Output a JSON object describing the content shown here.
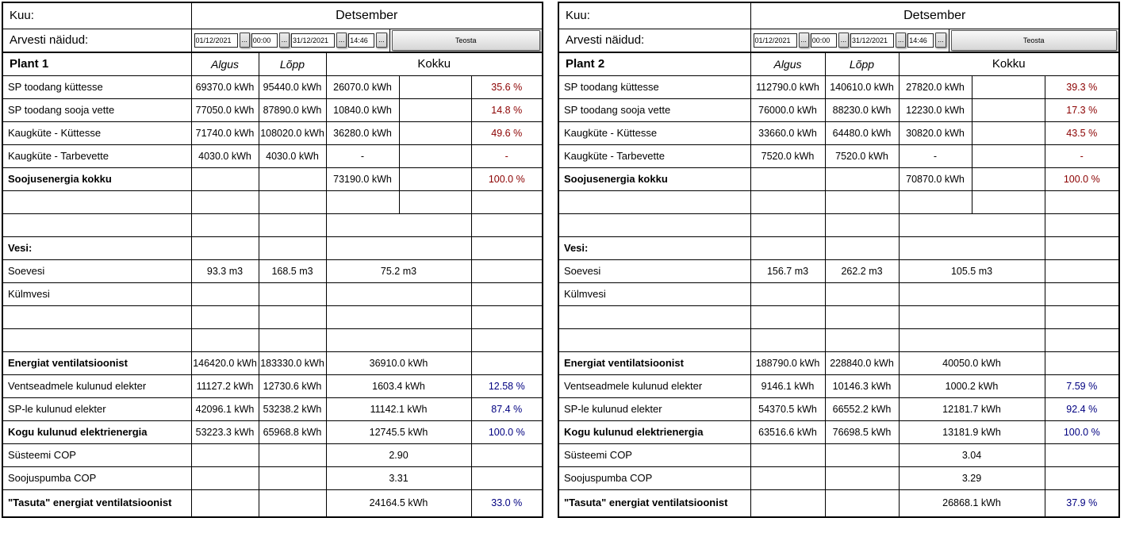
{
  "colors": {
    "pct_red": "#8b0000",
    "pct_blue": "#000080",
    "border": "#000000"
  },
  "tables": [
    {
      "header": {
        "kuu_label": "Kuu:",
        "month": "Detsember",
        "arvesti_label": "Arvesti näidud:",
        "date_from": "01/12/2021",
        "time_from": "00:00",
        "date_to": "31/12/2021",
        "time_to": "14:46",
        "browse_button": "...",
        "teosta_button": "Teosta",
        "plant_title": "Plant 1",
        "col_algus": "Algus",
        "col_lopp": "Lõpp",
        "col_kokku": "Kokku"
      },
      "rows": [
        {
          "label": "SP toodang küttesse",
          "bold": false,
          "merged": false,
          "algus": "69370.0 kWh",
          "lopp": "95440.0 kWh",
          "val": "26070.0 kWh",
          "mid": "",
          "pct": "35.6 %",
          "pct_color": "red"
        },
        {
          "label": "SP toodang sooja vette",
          "bold": false,
          "merged": false,
          "algus": "77050.0 kWh",
          "lopp": "87890.0 kWh",
          "val": "10840.0 kWh",
          "mid": "",
          "pct": "14.8 %",
          "pct_color": "red"
        },
        {
          "label": "Kaugküte - Küttesse",
          "bold": false,
          "merged": false,
          "algus": "71740.0 kWh",
          "lopp": "108020.0 kWh",
          "val": "36280.0 kWh",
          "mid": "",
          "pct": "49.6 %",
          "pct_color": "red"
        },
        {
          "label": "Kaugküte - Tarbevette",
          "bold": false,
          "merged": false,
          "algus": "4030.0 kWh",
          "lopp": "4030.0 kWh",
          "val": "-",
          "mid": "",
          "pct": "-",
          "pct_color": "red"
        },
        {
          "label": "Soojusenergia kokku",
          "bold": true,
          "merged": false,
          "algus": "",
          "lopp": "",
          "val": "73190.0 kWh",
          "mid": "",
          "pct": "100.0 %",
          "pct_color": "red"
        },
        {
          "label": "",
          "bold": false,
          "merged": false,
          "algus": "",
          "lopp": "",
          "val": "",
          "mid": "",
          "pct": "",
          "pct_color": null
        },
        {
          "label": "",
          "bold": false,
          "merged": true,
          "algus": "",
          "lopp": "",
          "val": "",
          "pct": "",
          "pct_color": null
        },
        {
          "label": "Vesi:",
          "bold": true,
          "merged": true,
          "algus": "",
          "lopp": "",
          "val": "",
          "pct": "",
          "pct_color": null
        },
        {
          "label": "Soevesi",
          "bold": false,
          "merged": true,
          "algus": "93.3 m3",
          "lopp": "168.5 m3",
          "val": "75.2 m3",
          "pct": "",
          "pct_color": null
        },
        {
          "label": "Külmvesi",
          "bold": false,
          "merged": true,
          "algus": "",
          "lopp": "",
          "val": "",
          "pct": "",
          "pct_color": null
        },
        {
          "label": "",
          "bold": false,
          "merged": true,
          "algus": "",
          "lopp": "",
          "val": "",
          "pct": "",
          "pct_color": null
        },
        {
          "label": "",
          "bold": false,
          "merged": true,
          "algus": "",
          "lopp": "",
          "val": "",
          "pct": "",
          "pct_color": null
        },
        {
          "label": "Energiat ventilatsioonist",
          "bold": true,
          "merged": true,
          "algus": "146420.0 kWh",
          "lopp": "183330.0 kWh",
          "val": "36910.0 kWh",
          "pct": "",
          "pct_color": null
        },
        {
          "label": "Ventseadmele kulunud elekter",
          "bold": false,
          "merged": true,
          "algus": "11127.2 kWh",
          "lopp": "12730.6 kWh",
          "val": "1603.4 kWh",
          "pct": "12.58 %",
          "pct_color": "blue"
        },
        {
          "label": "SP-le kulunud elekter",
          "bold": false,
          "merged": true,
          "algus": "42096.1 kWh",
          "lopp": "53238.2 kWh",
          "val": "11142.1 kWh",
          "pct": "87.4 %",
          "pct_color": "blue"
        },
        {
          "label": "Kogu kulunud elektrienergia",
          "bold": true,
          "merged": true,
          "algus": "53223.3 kWh",
          "lopp": "65968.8 kWh",
          "val": "12745.5 kWh",
          "pct": "100.0 %",
          "pct_color": "blue"
        },
        {
          "label": "Süsteemi COP",
          "bold": false,
          "merged": true,
          "algus": "",
          "lopp": "",
          "val": "2.90",
          "pct": "",
          "pct_color": null
        },
        {
          "label": "Soojuspumba COP",
          "bold": false,
          "merged": true,
          "algus": "",
          "lopp": "",
          "val": "3.31",
          "pct": "",
          "pct_color": null
        },
        {
          "label": "\"Tasuta\" energiat ventilatsioonist",
          "bold": true,
          "tall": true,
          "merged": true,
          "algus": "",
          "lopp": "",
          "val": "24164.5 kWh",
          "pct": "33.0 %",
          "pct_color": "blue"
        }
      ]
    },
    {
      "header": {
        "kuu_label": "Kuu:",
        "month": "Detsember",
        "arvesti_label": "Arvesti näidud:",
        "date_from": "01/12/2021",
        "time_from": "00:00",
        "date_to": "31/12/2021",
        "time_to": "14:46",
        "browse_button": "...",
        "teosta_button": "Teosta",
        "plant_title": "Plant 2",
        "col_algus": "Algus",
        "col_lopp": "Lõpp",
        "col_kokku": "Kokku"
      },
      "rows": [
        {
          "label": "SP toodang küttesse",
          "bold": false,
          "merged": false,
          "algus": "112790.0 kWh",
          "lopp": "140610.0 kWh",
          "val": "27820.0 kWh",
          "mid": "",
          "pct": "39.3 %",
          "pct_color": "red"
        },
        {
          "label": "SP toodang sooja vette",
          "bold": false,
          "merged": false,
          "algus": "76000.0 kWh",
          "lopp": "88230.0 kWh",
          "val": "12230.0 kWh",
          "mid": "",
          "pct": "17.3 %",
          "pct_color": "red"
        },
        {
          "label": "Kaugküte - Küttesse",
          "bold": false,
          "merged": false,
          "algus": "33660.0 kWh",
          "lopp": "64480.0 kWh",
          "val": "30820.0 kWh",
          "mid": "",
          "pct": "43.5 %",
          "pct_color": "red"
        },
        {
          "label": "Kaugküte - Tarbevette",
          "bold": false,
          "merged": false,
          "algus": "7520.0 kWh",
          "lopp": "7520.0 kWh",
          "val": "-",
          "mid": "",
          "pct": "-",
          "pct_color": "red"
        },
        {
          "label": "Soojusenergia kokku",
          "bold": true,
          "merged": false,
          "algus": "",
          "lopp": "",
          "val": "70870.0 kWh",
          "mid": "",
          "pct": "100.0 %",
          "pct_color": "red"
        },
        {
          "label": "",
          "bold": false,
          "merged": false,
          "algus": "",
          "lopp": "",
          "val": "",
          "mid": "",
          "pct": "",
          "pct_color": null
        },
        {
          "label": "",
          "bold": false,
          "merged": true,
          "algus": "",
          "lopp": "",
          "val": "",
          "pct": "",
          "pct_color": null
        },
        {
          "label": "Vesi:",
          "bold": true,
          "merged": true,
          "algus": "",
          "lopp": "",
          "val": "",
          "pct": "",
          "pct_color": null
        },
        {
          "label": "Soevesi",
          "bold": false,
          "merged": true,
          "algus": "156.7 m3",
          "lopp": "262.2 m3",
          "val": "105.5 m3",
          "pct": "",
          "pct_color": null
        },
        {
          "label": "Külmvesi",
          "bold": false,
          "merged": true,
          "algus": "",
          "lopp": "",
          "val": "",
          "pct": "",
          "pct_color": null
        },
        {
          "label": "",
          "bold": false,
          "merged": true,
          "algus": "",
          "lopp": "",
          "val": "",
          "pct": "",
          "pct_color": null
        },
        {
          "label": "",
          "bold": false,
          "merged": true,
          "algus": "",
          "lopp": "",
          "val": "",
          "pct": "",
          "pct_color": null
        },
        {
          "label": "Energiat ventilatsioonist",
          "bold": true,
          "merged": true,
          "algus": "188790.0 kWh",
          "lopp": "228840.0 kWh",
          "val": "40050.0 kWh",
          "pct": "",
          "pct_color": null
        },
        {
          "label": "Ventseadmele kulunud elekter",
          "bold": false,
          "merged": true,
          "algus": "9146.1 kWh",
          "lopp": "10146.3 kWh",
          "val": "1000.2 kWh",
          "pct": "7.59 %",
          "pct_color": "blue"
        },
        {
          "label": "SP-le kulunud elekter",
          "bold": false,
          "merged": true,
          "algus": "54370.5 kWh",
          "lopp": "66552.2 kWh",
          "val": "12181.7 kWh",
          "pct": "92.4 %",
          "pct_color": "blue"
        },
        {
          "label": "Kogu kulunud elektrienergia",
          "bold": true,
          "merged": true,
          "algus": "63516.6 kWh",
          "lopp": "76698.5 kWh",
          "val": "13181.9 kWh",
          "pct": "100.0 %",
          "pct_color": "blue"
        },
        {
          "label": "Süsteemi COP",
          "bold": false,
          "merged": true,
          "algus": "",
          "lopp": "",
          "val": "3.04",
          "pct": "",
          "pct_color": null
        },
        {
          "label": "Soojuspumba COP",
          "bold": false,
          "merged": true,
          "algus": "",
          "lopp": "",
          "val": "3.29",
          "pct": "",
          "pct_color": null
        },
        {
          "label": "\"Tasuta\" energiat ventilatsioonist",
          "bold": true,
          "tall": true,
          "merged": true,
          "algus": "",
          "lopp": "",
          "val": "26868.1 kWh",
          "pct": "37.9 %",
          "pct_color": "blue"
        }
      ]
    }
  ]
}
